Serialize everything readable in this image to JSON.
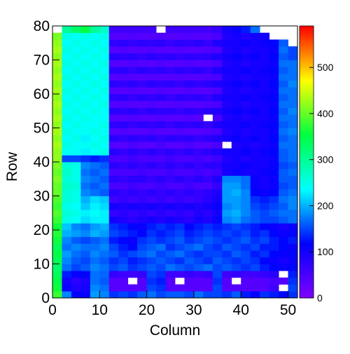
{
  "chart_data": {
    "type": "heatmap",
    "x_label": "Column",
    "y_label": "Row",
    "xlim": [
      0,
      52
    ],
    "ylim": [
      0,
      80
    ],
    "xticks": [
      0,
      10,
      20,
      30,
      40,
      50
    ],
    "yticks": [
      0,
      10,
      20,
      30,
      40,
      50,
      60,
      70,
      80
    ],
    "zlim": [
      0,
      590
    ],
    "zticks": [
      0,
      100,
      200,
      300,
      400,
      500
    ],
    "palette": [
      "#8000ff",
      "#0000ff",
      "#00ffff",
      "#00ff40",
      "#ffff00",
      "#ff0000"
    ],
    "z": [
      [
        380,
        180,
        120,
        110,
        190,
        180,
        140,
        150,
        140,
        160,
        170,
        150,
        160,
        160,
        150,
        170,
        150,
        150,
        140,
        160,
        130,
        120,
        140,
        130,
        120,
        140
      ],
      [
        360,
        110,
        90,
        100,
        180,
        170,
        40,
        40,
        40,
        40,
        150,
        140,
        40,
        40,
        40,
        40,
        40,
        150,
        40,
        40,
        40,
        40,
        40,
        60,
        null,
        150
      ],
      [
        350,
        100,
        80,
        95,
        170,
        160,
        40,
        40,
        null,
        40,
        140,
        130,
        40,
        null,
        40,
        40,
        40,
        140,
        40,
        null,
        40,
        40,
        40,
        50,
        40,
        140
      ],
      [
        340,
        130,
        110,
        120,
        170,
        165,
        70,
        60,
        60,
        70,
        150,
        140,
        60,
        60,
        70,
        60,
        70,
        150,
        60,
        70,
        60,
        60,
        70,
        80,
        null,
        130
      ],
      [
        330,
        170,
        150,
        160,
        180,
        170,
        150,
        160,
        140,
        150,
        160,
        150,
        170,
        160,
        150,
        160,
        170,
        150,
        160,
        150,
        140,
        150,
        130,
        120,
        110,
        120
      ],
      [
        340,
        180,
        160,
        150,
        170,
        160,
        140,
        150,
        130,
        140,
        150,
        160,
        150,
        140,
        160,
        150,
        140,
        160,
        150,
        140,
        150,
        140,
        120,
        110,
        100,
        110
      ],
      [
        350,
        190,
        170,
        160,
        180,
        170,
        160,
        140,
        150,
        160,
        170,
        150,
        160,
        170,
        150,
        140,
        150,
        150,
        140,
        160,
        150,
        130,
        140,
        120,
        110,
        120
      ],
      [
        340,
        170,
        180,
        170,
        170,
        180,
        150,
        130,
        120,
        150,
        160,
        170,
        140,
        150,
        160,
        170,
        150,
        140,
        160,
        150,
        140,
        150,
        130,
        130,
        120,
        110
      ],
      [
        360,
        180,
        160,
        150,
        160,
        170,
        130,
        120,
        110,
        140,
        150,
        140,
        150,
        160,
        140,
        150,
        160,
        150,
        140,
        150,
        160,
        140,
        150,
        130,
        120,
        130
      ],
      [
        370,
        200,
        190,
        180,
        200,
        190,
        150,
        140,
        130,
        120,
        140,
        130,
        140,
        150,
        130,
        140,
        150,
        140,
        150,
        140,
        150,
        130,
        140,
        120,
        110,
        120
      ],
      [
        360,
        210,
        180,
        170,
        190,
        200,
        140,
        130,
        120,
        110,
        130,
        140,
        130,
        140,
        120,
        130,
        140,
        130,
        140,
        150,
        140,
        130,
        120,
        110,
        100,
        110
      ],
      [
        380,
        250,
        240,
        220,
        230,
        230,
        100,
        90,
        80,
        90,
        100,
        90,
        100,
        90,
        80,
        100,
        90,
        110,
        180,
        190,
        170,
        160,
        150,
        150,
        160,
        170
      ],
      [
        390,
        260,
        250,
        230,
        240,
        230,
        70,
        80,
        70,
        80,
        70,
        80,
        70,
        80,
        70,
        90,
        80,
        100,
        190,
        200,
        180,
        160,
        150,
        160,
        170,
        170
      ],
      [
        380,
        250,
        240,
        210,
        230,
        220,
        100,
        90,
        100,
        90,
        100,
        90,
        100,
        90,
        100,
        90,
        100,
        110,
        180,
        190,
        180,
        150,
        140,
        150,
        160,
        180
      ],
      [
        390,
        260,
        250,
        200,
        220,
        210,
        60,
        70,
        60,
        70,
        60,
        70,
        60,
        70,
        60,
        70,
        80,
        100,
        190,
        190,
        180,
        140,
        130,
        140,
        170,
        180
      ],
      [
        400,
        260,
        250,
        180,
        170,
        160,
        80,
        70,
        80,
        70,
        80,
        70,
        80,
        70,
        80,
        70,
        80,
        90,
        190,
        200,
        180,
        120,
        110,
        120,
        160,
        170
      ],
      [
        400,
        270,
        260,
        170,
        160,
        170,
        50,
        50,
        60,
        50,
        50,
        60,
        50,
        50,
        60,
        50,
        50,
        70,
        190,
        190,
        170,
        110,
        100,
        110,
        150,
        160
      ],
      [
        410,
        260,
        250,
        180,
        170,
        160,
        80,
        70,
        80,
        80,
        70,
        80,
        70,
        80,
        70,
        80,
        70,
        90,
        180,
        180,
        170,
        110,
        100,
        110,
        160,
        160
      ],
      [
        400,
        270,
        250,
        170,
        160,
        170,
        50,
        50,
        50,
        60,
        50,
        50,
        60,
        50,
        50,
        60,
        50,
        60,
        100,
        110,
        100,
        100,
        110,
        120,
        160,
        170
      ],
      [
        410,
        260,
        250,
        180,
        170,
        160,
        80,
        70,
        80,
        70,
        80,
        70,
        80,
        70,
        80,
        70,
        80,
        80,
        100,
        100,
        110,
        100,
        100,
        110,
        150,
        160
      ],
      [
        420,
        150,
        150,
        140,
        130,
        140,
        50,
        50,
        60,
        50,
        50,
        50,
        60,
        50,
        50,
        60,
        50,
        60,
        90,
        100,
        90,
        100,
        100,
        110,
        160,
        170
      ],
      [
        420,
        240,
        240,
        230,
        240,
        250,
        80,
        70,
        80,
        70,
        80,
        70,
        80,
        70,
        80,
        70,
        80,
        90,
        100,
        100,
        110,
        100,
        110,
        120,
        160,
        170
      ],
      [
        430,
        250,
        240,
        240,
        250,
        240,
        40,
        40,
        50,
        40,
        40,
        50,
        40,
        40,
        50,
        40,
        40,
        50,
        null,
        90,
        100,
        90,
        100,
        110,
        170,
        170
      ],
      [
        420,
        240,
        250,
        230,
        240,
        250,
        80,
        70,
        80,
        75,
        80,
        70,
        80,
        75,
        80,
        70,
        80,
        90,
        100,
        110,
        100,
        110,
        100,
        120,
        160,
        170
      ],
      [
        430,
        250,
        240,
        240,
        250,
        240,
        40,
        45,
        40,
        40,
        45,
        40,
        40,
        45,
        40,
        40,
        45,
        50,
        90,
        100,
        90,
        100,
        100,
        110,
        170,
        180
      ],
      [
        420,
        240,
        250,
        240,
        240,
        250,
        75,
        80,
        70,
        80,
        75,
        80,
        70,
        80,
        75,
        80,
        70,
        90,
        100,
        100,
        110,
        100,
        110,
        120,
        160,
        170
      ],
      [
        430,
        250,
        240,
        250,
        240,
        240,
        40,
        40,
        45,
        40,
        40,
        45,
        40,
        40,
        45,
        40,
        null,
        50,
        90,
        100,
        90,
        100,
        100,
        110,
        170,
        170
      ],
      [
        420,
        240,
        250,
        240,
        250,
        240,
        80,
        75,
        80,
        70,
        80,
        75,
        80,
        70,
        80,
        75,
        80,
        90,
        100,
        110,
        100,
        110,
        100,
        120,
        160,
        180
      ],
      [
        430,
        250,
        240,
        250,
        240,
        250,
        40,
        45,
        40,
        40,
        45,
        40,
        40,
        45,
        40,
        40,
        45,
        50,
        90,
        100,
        90,
        100,
        100,
        110,
        170,
        170
      ],
      [
        420,
        240,
        250,
        240,
        250,
        240,
        75,
        80,
        70,
        80,
        75,
        80,
        70,
        80,
        75,
        80,
        70,
        90,
        100,
        100,
        110,
        100,
        110,
        120,
        160,
        170
      ],
      [
        430,
        250,
        240,
        250,
        240,
        250,
        40,
        40,
        45,
        40,
        40,
        45,
        40,
        40,
        45,
        40,
        40,
        50,
        90,
        100,
        90,
        100,
        100,
        110,
        170,
        170
      ],
      [
        420,
        240,
        250,
        240,
        250,
        240,
        80,
        75,
        80,
        70,
        80,
        75,
        80,
        70,
        80,
        75,
        80,
        90,
        100,
        110,
        100,
        110,
        100,
        120,
        160,
        180
      ],
      [
        430,
        250,
        240,
        250,
        240,
        250,
        40,
        45,
        40,
        40,
        45,
        40,
        40,
        45,
        40,
        40,
        45,
        50,
        90,
        100,
        90,
        100,
        100,
        110,
        170,
        170
      ],
      [
        420,
        240,
        250,
        240,
        250,
        240,
        75,
        80,
        70,
        80,
        75,
        80,
        70,
        80,
        75,
        80,
        70,
        90,
        100,
        100,
        110,
        100,
        110,
        120,
        160,
        170
      ],
      [
        430,
        250,
        240,
        250,
        240,
        250,
        40,
        40,
        45,
        40,
        40,
        45,
        40,
        40,
        45,
        40,
        40,
        50,
        90,
        100,
        90,
        100,
        100,
        110,
        170,
        170
      ],
      [
        420,
        240,
        250,
        240,
        250,
        240,
        80,
        75,
        80,
        70,
        80,
        75,
        80,
        70,
        80,
        75,
        80,
        90,
        100,
        110,
        100,
        110,
        100,
        120,
        160,
        150
      ],
      [
        430,
        250,
        240,
        250,
        240,
        250,
        40,
        45,
        40,
        40,
        45,
        40,
        40,
        45,
        40,
        40,
        45,
        50,
        90,
        100,
        90,
        100,
        100,
        110,
        170,
        150
      ],
      [
        420,
        240,
        250,
        240,
        250,
        240,
        75,
        80,
        70,
        80,
        75,
        80,
        70,
        80,
        75,
        80,
        70,
        90,
        100,
        100,
        110,
        100,
        110,
        120,
        160,
        null
      ],
      [
        410,
        250,
        240,
        250,
        240,
        250,
        40,
        40,
        45,
        40,
        40,
        45,
        40,
        40,
        45,
        40,
        40,
        50,
        90,
        100,
        90,
        100,
        100,
        null,
        null,
        null
      ],
      [
        null,
        300,
        330,
        350,
        300,
        270,
        60,
        60,
        60,
        60,
        60,
        null,
        60,
        60,
        60,
        60,
        60,
        70,
        100,
        110,
        130,
        170,
        null,
        null,
        null,
        null
      ]
    ]
  }
}
